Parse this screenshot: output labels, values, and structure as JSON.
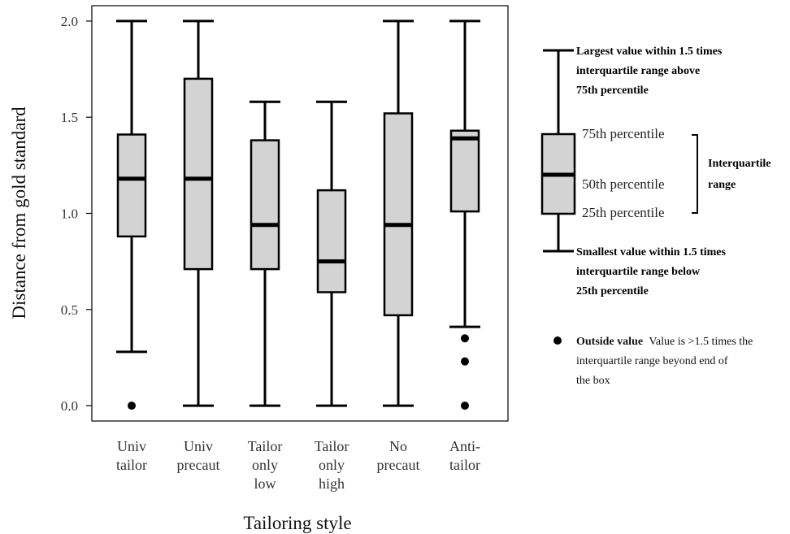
{
  "chart_data": {
    "type": "box",
    "xlabel": "Tailoring style",
    "ylabel": "Distance from gold standard",
    "ylim": [
      -0.08,
      2.08
    ],
    "yticks": [
      0.0,
      0.5,
      1.0,
      1.5,
      2.0
    ],
    "ytick_labels": [
      "0.0",
      "0.5",
      "1.0",
      "1.5",
      "2.0"
    ],
    "box_fill": "#d3d3d3",
    "line_color": "#000000",
    "boxes": [
      {
        "label": [
          "Univ",
          "tailor"
        ],
        "whisker_low": 0.28,
        "q1": 0.88,
        "median": 1.18,
        "q3": 1.41,
        "whisker_high": 2.0,
        "outliers": [
          0.0
        ]
      },
      {
        "label": [
          "Univ",
          "precaut"
        ],
        "whisker_low": 0.0,
        "q1": 0.71,
        "median": 1.18,
        "q3": 1.7,
        "whisker_high": 2.0,
        "outliers": []
      },
      {
        "label": [
          "Tailor",
          "only",
          "low"
        ],
        "whisker_low": 0.0,
        "q1": 0.71,
        "median": 0.94,
        "q3": 1.38,
        "whisker_high": 1.58,
        "outliers": []
      },
      {
        "label": [
          "Tailor",
          "only",
          "high"
        ],
        "whisker_low": 0.0,
        "q1": 0.59,
        "median": 0.75,
        "q3": 1.12,
        "whisker_high": 1.58,
        "outliers": []
      },
      {
        "label": [
          "No",
          "precaut"
        ],
        "whisker_low": 0.0,
        "q1": 0.47,
        "median": 0.94,
        "q3": 1.52,
        "whisker_high": 2.0,
        "outliers": []
      },
      {
        "label": [
          "Anti-",
          "tailor"
        ],
        "whisker_low": 0.41,
        "q1": 1.01,
        "median": 1.39,
        "q3": 1.43,
        "whisker_high": 2.0,
        "outliers": [
          0.35,
          0.23,
          0.0
        ]
      }
    ]
  },
  "legend": {
    "upper_whisker_lines": [
      "Largest value within 1.5 times",
      "interquartile range above",
      "75th percentile"
    ],
    "p75": "75th percentile",
    "p50": "50th percentile",
    "p25": "25th percentile",
    "iqr_lines": [
      "Interquartile",
      "range"
    ],
    "lower_whisker_lines": [
      "Smallest value within 1.5 times",
      "interquartile range below",
      "25th percentile"
    ],
    "outside_title": "Outside value",
    "outside_lines": [
      "Value is >1.5 times the",
      "interquartile range beyond end of",
      "the box"
    ]
  }
}
